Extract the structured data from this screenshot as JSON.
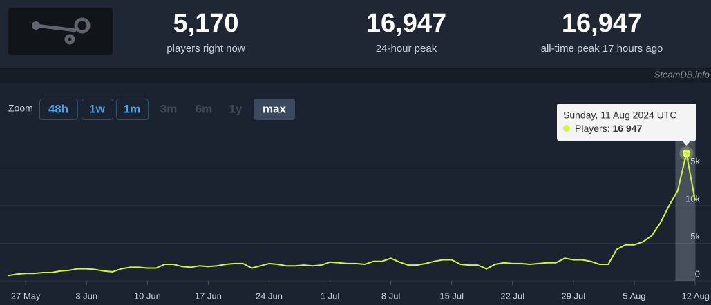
{
  "header": {
    "stats": [
      {
        "value": "5,170",
        "caption": "players right now"
      },
      {
        "value": "16,947",
        "caption": "24-hour peak"
      },
      {
        "value": "16,947",
        "caption": "all-time peak 17 hours ago"
      }
    ],
    "watermark": "SteamDB.info"
  },
  "zoom": {
    "label": "Zoom",
    "buttons": [
      "48h",
      "1w",
      "1m",
      "3m",
      "6m",
      "1y",
      "max"
    ]
  },
  "chart_data": {
    "type": "line",
    "x": [
      "2024-05-25",
      "2024-05-26",
      "2024-05-27",
      "2024-05-28",
      "2024-05-29",
      "2024-05-30",
      "2024-05-31",
      "2024-06-01",
      "2024-06-02",
      "2024-06-03",
      "2024-06-04",
      "2024-06-05",
      "2024-06-06",
      "2024-06-07",
      "2024-06-08",
      "2024-06-09",
      "2024-06-10",
      "2024-06-11",
      "2024-06-12",
      "2024-06-13",
      "2024-06-14",
      "2024-06-15",
      "2024-06-16",
      "2024-06-17",
      "2024-06-18",
      "2024-06-19",
      "2024-06-20",
      "2024-06-21",
      "2024-06-22",
      "2024-06-23",
      "2024-06-24",
      "2024-06-25",
      "2024-06-26",
      "2024-06-27",
      "2024-06-28",
      "2024-06-29",
      "2024-06-30",
      "2024-07-01",
      "2024-07-02",
      "2024-07-03",
      "2024-07-04",
      "2024-07-05",
      "2024-07-06",
      "2024-07-07",
      "2024-07-08",
      "2024-07-09",
      "2024-07-10",
      "2024-07-11",
      "2024-07-12",
      "2024-07-13",
      "2024-07-14",
      "2024-07-15",
      "2024-07-16",
      "2024-07-17",
      "2024-07-18",
      "2024-07-19",
      "2024-07-20",
      "2024-07-21",
      "2024-07-22",
      "2024-07-23",
      "2024-07-24",
      "2024-07-25",
      "2024-07-26",
      "2024-07-27",
      "2024-07-28",
      "2024-07-29",
      "2024-07-30",
      "2024-07-31",
      "2024-08-01",
      "2024-08-02",
      "2024-08-03",
      "2024-08-04",
      "2024-08-05",
      "2024-08-06",
      "2024-08-07",
      "2024-08-08",
      "2024-08-09",
      "2024-08-10",
      "2024-08-11",
      "2024-08-12"
    ],
    "series": [
      {
        "name": "Players",
        "color": "#d4f53c",
        "values": [
          700,
          900,
          1000,
          1000,
          1100,
          1100,
          1300,
          1400,
          1600,
          1600,
          1500,
          1300,
          1200,
          1600,
          1800,
          1800,
          1700,
          1700,
          2200,
          2200,
          1900,
          1800,
          2000,
          1900,
          2000,
          2200,
          2300,
          2300,
          1700,
          2000,
          2300,
          2200,
          2000,
          2000,
          2100,
          2000,
          2100,
          2500,
          2400,
          2300,
          2300,
          2200,
          2600,
          2600,
          3000,
          2500,
          2100,
          2100,
          2300,
          2600,
          2800,
          2800,
          2200,
          2100,
          2100,
          1600,
          2200,
          2400,
          2300,
          2300,
          2200,
          2300,
          2400,
          2400,
          3000,
          2800,
          2800,
          2600,
          2200,
          2200,
          4200,
          4800,
          4800,
          5200,
          6000,
          7700,
          10000,
          12000,
          16947,
          10700
        ]
      }
    ],
    "xlim": [
      "2024-05-25",
      "2024-08-12"
    ],
    "xticks": [
      {
        "value": "2024-05-27",
        "label": "27 May"
      },
      {
        "value": "2024-06-03",
        "label": "3 Jun"
      },
      {
        "value": "2024-06-10",
        "label": "10 Jun"
      },
      {
        "value": "2024-06-17",
        "label": "17 Jun"
      },
      {
        "value": "2024-06-24",
        "label": "24 Jun"
      },
      {
        "value": "2024-07-01",
        "label": "1 Jul"
      },
      {
        "value": "2024-07-08",
        "label": "8 Jul"
      },
      {
        "value": "2024-07-15",
        "label": "15 Jul"
      },
      {
        "value": "2024-07-22",
        "label": "22 Jul"
      },
      {
        "value": "2024-07-29",
        "label": "29 Jul"
      },
      {
        "value": "2024-08-05",
        "label": "5 Aug"
      },
      {
        "value": "2024-08-12",
        "label": "12 Aug"
      }
    ],
    "ylim": [
      0,
      20000
    ],
    "yticks": [
      0,
      {
        "value": 5000,
        "label": "5k"
      },
      {
        "value": 10000,
        "label": "10k"
      },
      {
        "value": 15000,
        "label": "15k"
      }
    ],
    "grid": true,
    "tooltip": {
      "title": "Sunday, 11 Aug 2024 UTC",
      "series_label": "Players:",
      "value_text": "16 947",
      "index": 78
    }
  }
}
